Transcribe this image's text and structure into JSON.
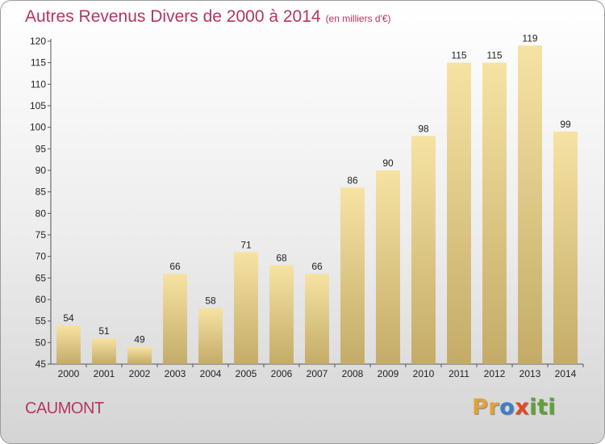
{
  "header": {
    "title": "Autres Revenus Divers de 2000 à 2014",
    "subtitle": "(en milliers d'€)"
  },
  "footer": {
    "place": "CAUMONT",
    "logo_letters": [
      "P",
      "r",
      "o",
      "x",
      "i",
      "t",
      "i"
    ],
    "logo_colors": [
      "#e2a23a",
      "#e2a23a",
      "#3d7ec8",
      "#e04a23",
      "#5ea23a",
      "#5ea23a",
      "#5ea23a"
    ]
  },
  "chart_data": {
    "type": "bar",
    "title": "Autres Revenus Divers de 2000 à 2014",
    "subtitle": "(en milliers d'€)",
    "categories": [
      "2000",
      "2001",
      "2002",
      "2003",
      "2004",
      "2005",
      "2006",
      "2007",
      "2008",
      "2009",
      "2010",
      "2011",
      "2012",
      "2013",
      "2014"
    ],
    "values": [
      54,
      51,
      49,
      66,
      58,
      71,
      68,
      66,
      86,
      90,
      98,
      115,
      115,
      119,
      99
    ],
    "ylim": [
      45,
      120
    ],
    "yticks": [
      45,
      50,
      55,
      60,
      65,
      70,
      75,
      80,
      85,
      90,
      95,
      100,
      105,
      110,
      115,
      120
    ],
    "grid": false,
    "bar_color_top": "#f6e3a3",
    "bar_color_bottom": "#c4ab68"
  }
}
